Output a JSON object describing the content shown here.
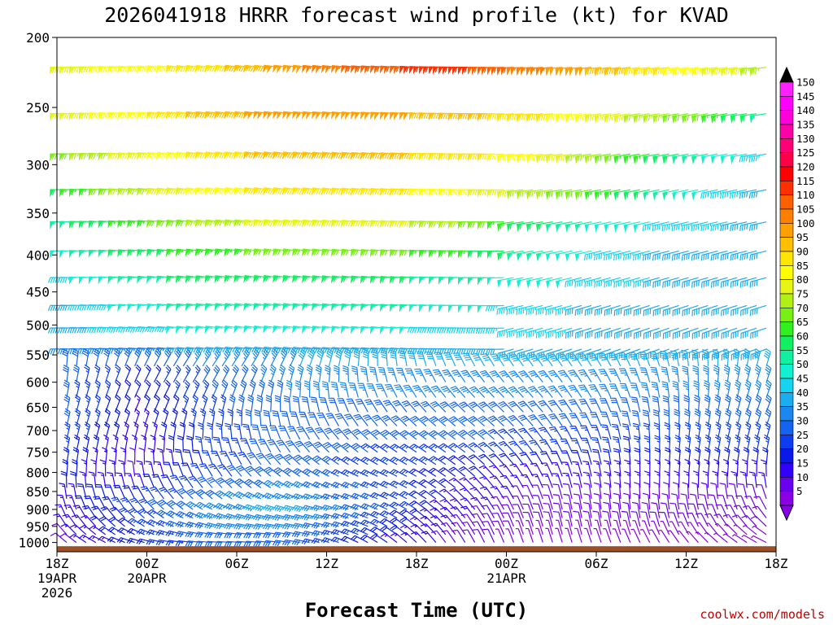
{
  "title": "2026041918 HRRR forecast wind profile (kt) for KVAD",
  "credit": "coolwx.com/models",
  "chart_data": {
    "type": "wind-barb-time-height",
    "title": "2026041918 HRRR forecast wind profile (kt) for KVAD",
    "xlabel": "Forecast Time (UTC)",
    "ylabel": "",
    "x_ticks": [
      {
        "label": "18Z",
        "sub": [
          "19APR",
          "2026"
        ],
        "hour": 0
      },
      {
        "label": "00Z",
        "sub": [
          "20APR"
        ],
        "hour": 6
      },
      {
        "label": "06Z",
        "sub": [],
        "hour": 12
      },
      {
        "label": "12Z",
        "sub": [],
        "hour": 18
      },
      {
        "label": "18Z",
        "sub": [],
        "hour": 24
      },
      {
        "label": "00Z",
        "sub": [
          "21APR"
        ],
        "hour": 30
      },
      {
        "label": "06Z",
        "sub": [],
        "hour": 36
      },
      {
        "label": "12Z",
        "sub": [],
        "hour": 42
      },
      {
        "label": "18Z",
        "sub": [],
        "hour": 48
      }
    ],
    "xlim_hours": [
      0,
      48
    ],
    "y_ticks": [
      200,
      250,
      300,
      350,
      400,
      450,
      500,
      550,
      600,
      650,
      700,
      750,
      800,
      850,
      900,
      950,
      1000
    ],
    "ylim_hpa": [
      1030,
      200
    ],
    "y_scale": "log",
    "levels_hpa": [
      220,
      255,
      290,
      325,
      360,
      395,
      430,
      470,
      505,
      540,
      570,
      600,
      630,
      660,
      690,
      720,
      750,
      780,
      810,
      840,
      870,
      900,
      925,
      950,
      975,
      1000
    ],
    "colorbar": {
      "labels": [
        "5",
        "10",
        "15",
        "20",
        "25",
        "30",
        "35",
        "40",
        "45",
        "50",
        "55",
        "60",
        "65",
        "70",
        "75",
        "80",
        "85",
        "90",
        "95",
        "100",
        "105",
        "110",
        "115",
        "120",
        "125",
        "130",
        "135",
        "140",
        "145",
        "150"
      ],
      "colors": [
        "#8a00e6",
        "#6a00f0",
        "#3200ff",
        "#0a18e8",
        "#0e3df0",
        "#1464f0",
        "#1a88f0",
        "#1cacf0",
        "#16d4f0",
        "#12f0d2",
        "#10f0a0",
        "#10f060",
        "#30f020",
        "#78f014",
        "#b0f014",
        "#e6f514",
        "#ffff00",
        "#ffe600",
        "#ffc000",
        "#ffa000",
        "#ff8000",
        "#ff6000",
        "#ff3000",
        "#ff0000",
        "#ff0048",
        "#ff0078",
        "#ff00a8",
        "#ff00d8",
        "#ff00ff",
        "#ff20ff"
      ],
      "low_arrow_color": "#8a00e6",
      "high_arrow_color": "#000000"
    },
    "ground_color": "#9c5028",
    "profiles": [
      {
        "level": 220,
        "speed": [
          80,
          85,
          90,
          100,
          110,
          115,
          105,
          95,
          85,
          75
        ]
      },
      {
        "level": 255,
        "speed": [
          80,
          85,
          95,
          100,
          100,
          95,
          90,
          80,
          70,
          55
        ]
      },
      {
        "level": 290,
        "speed": [
          70,
          80,
          90,
          95,
          95,
          90,
          85,
          70,
          55,
          45
        ]
      },
      {
        "level": 325,
        "speed": [
          60,
          75,
          85,
          90,
          90,
          85,
          75,
          65,
          50,
          40
        ]
      },
      {
        "level": 360,
        "speed": [
          55,
          65,
          75,
          80,
          80,
          75,
          60,
          50,
          45,
          40
        ]
      },
      {
        "level": 395,
        "speed": [
          50,
          60,
          65,
          70,
          70,
          65,
          55,
          45,
          40,
          40
        ]
      },
      {
        "level": 430,
        "speed": [
          45,
          55,
          60,
          60,
          60,
          55,
          50,
          45,
          40,
          40
        ]
      },
      {
        "level": 470,
        "speed": [
          40,
          50,
          55,
          55,
          55,
          50,
          45,
          40,
          40,
          40
        ]
      },
      {
        "level": 505,
        "speed": [
          40,
          45,
          50,
          50,
          50,
          45,
          45,
          40,
          40,
          40
        ]
      },
      {
        "level": 540,
        "speed": [
          35,
          35,
          40,
          40,
          40,
          40,
          40,
          40,
          40,
          40
        ]
      },
      {
        "level": 600,
        "speed": [
          30,
          20,
          30,
          35,
          35,
          35,
          35,
          35,
          35,
          35
        ]
      },
      {
        "level": 700,
        "speed": [
          30,
          15,
          25,
          30,
          30,
          30,
          30,
          30,
          30,
          30
        ]
      },
      {
        "level": 800,
        "speed": [
          20,
          10,
          25,
          30,
          25,
          20,
          15,
          15,
          15,
          15
        ]
      },
      {
        "level": 900,
        "speed": [
          15,
          25,
          35,
          40,
          30,
          15,
          10,
          10,
          10,
          10
        ]
      },
      {
        "level": 1000,
        "speed": [
          10,
          20,
          30,
          30,
          20,
          10,
          5,
          5,
          5,
          5
        ]
      }
    ],
    "profile_hours": [
      0,
      5.3,
      10.7,
      16,
      21.3,
      26.7,
      32,
      37.3,
      42.7,
      48
    ],
    "grid": false,
    "legend": "colorbar-right"
  }
}
